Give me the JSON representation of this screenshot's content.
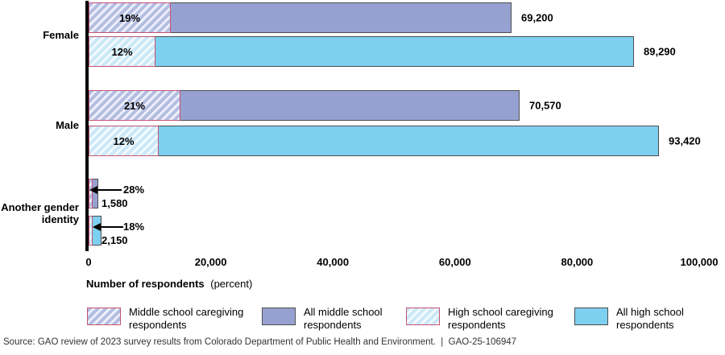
{
  "chart_data": {
    "type": "bar",
    "orientation": "horizontal",
    "x_axis": {
      "label_bold": "Number of respondents",
      "label_normal": "(percent)",
      "max": 100000,
      "ticks": [
        {
          "value": 0,
          "label": "0"
        },
        {
          "value": 20000,
          "label": "20,000"
        },
        {
          "value": 40000,
          "label": "40,000"
        },
        {
          "value": 60000,
          "label": "60,000"
        },
        {
          "value": 80000,
          "label": "80,000"
        },
        {
          "value": 100000,
          "label": "100,000"
        }
      ]
    },
    "groups": [
      {
        "label": "Female",
        "bars": [
          {
            "series": "All middle school respondents",
            "value": 69200,
            "value_label": "69,200",
            "caregiving_pct": 19,
            "caregiving_pct_label": "19%"
          },
          {
            "series": "All high school respondents",
            "value": 89290,
            "value_label": "89,290",
            "caregiving_pct": 12,
            "caregiving_pct_label": "12%"
          }
        ]
      },
      {
        "label": "Male",
        "bars": [
          {
            "series": "All middle school respondents",
            "value": 70570,
            "value_label": "70,570",
            "caregiving_pct": 21,
            "caregiving_pct_label": "21%"
          },
          {
            "series": "All high school respondents",
            "value": 93420,
            "value_label": "93,420",
            "caregiving_pct": 12,
            "caregiving_pct_label": "12%"
          }
        ]
      },
      {
        "label": "Another gender identity",
        "bars": [
          {
            "series": "All middle school respondents",
            "value": 1580,
            "value_label": "1,580",
            "caregiving_pct": 28,
            "caregiving_pct_label": "28%"
          },
          {
            "series": "All high school respondents",
            "value": 2150,
            "value_label": "2,150",
            "caregiving_pct": 18,
            "caregiving_pct_label": "18%"
          }
        ]
      }
    ],
    "legend": [
      {
        "label": "Middle school caregiving respondents"
      },
      {
        "label": "All middle school respondents"
      },
      {
        "label": "High school caregiving respondents"
      },
      {
        "label": "All high school respondents"
      }
    ]
  },
  "colors": {
    "middle_school": "#97a1d1",
    "high_school": "#7dd0ef",
    "caregiving_border": "#c45573",
    "bar_border": "#4d4d4d"
  },
  "source_line": "Source: GAO review of 2023 survey results from Colorado Department of Public Health and Environment.  |  GAO-25-106947"
}
